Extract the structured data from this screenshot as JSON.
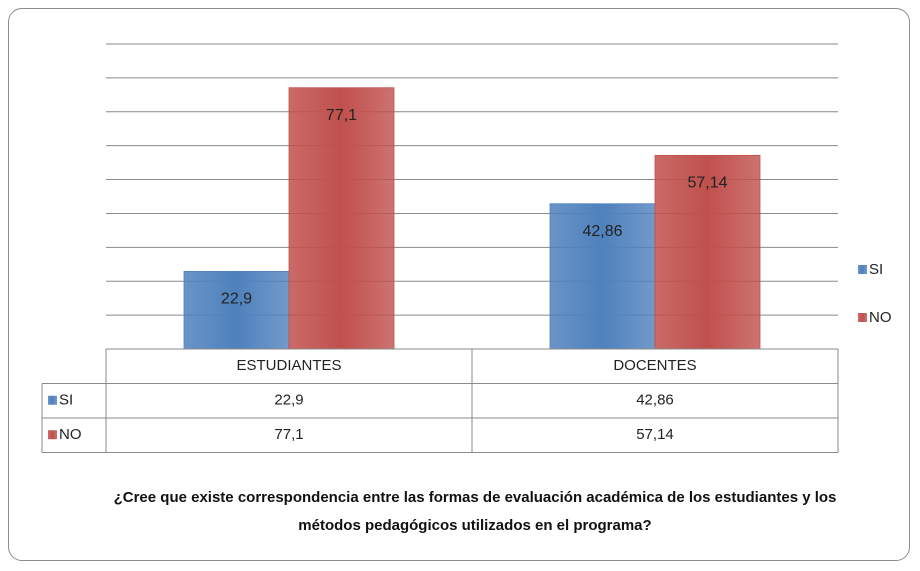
{
  "chart_data": {
    "type": "bar",
    "title": "¿Cree que existe correspondencia entre las formas de evaluación académica de los estudiantes y los métodos pedagógicos utilizados en el programa?",
    "categories": [
      "ESTUDIANTES",
      "DOCENTES"
    ],
    "series": [
      {
        "name": "SI",
        "color": "#4f81bd",
        "values": [
          22.9,
          42.86
        ],
        "value_labels": [
          "22,9",
          "42,86"
        ]
      },
      {
        "name": "NO",
        "color": "#c0504d",
        "values": [
          77.1,
          57.14
        ],
        "value_labels": [
          "77,1",
          "57,14"
        ]
      }
    ],
    "ylim": [
      0,
      90
    ],
    "yticks": [
      0,
      10,
      20,
      30,
      40,
      50,
      60,
      70,
      80,
      90
    ],
    "grid": true,
    "show_tick_labels": false,
    "legend": "right",
    "data_table": true
  }
}
